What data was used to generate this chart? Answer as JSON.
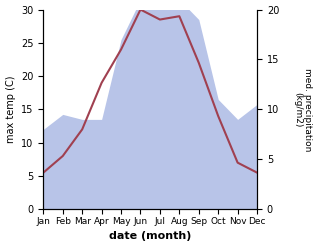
{
  "months": [
    1,
    2,
    3,
    4,
    5,
    6,
    7,
    8,
    9,
    10,
    11,
    12
  ],
  "month_labels": [
    "Jan",
    "Feb",
    "Mar",
    "Apr",
    "May",
    "Jun",
    "Jul",
    "Aug",
    "Sep",
    "Oct",
    "Nov",
    "Dec"
  ],
  "temperature": [
    5.5,
    8.0,
    12.0,
    19.0,
    24.0,
    30.0,
    28.5,
    29.0,
    22.0,
    14.0,
    7.0,
    5.5
  ],
  "precipitation": [
    8.0,
    9.5,
    9.0,
    9.0,
    17.0,
    21.0,
    20.0,
    21.0,
    19.0,
    11.0,
    9.0,
    10.5
  ],
  "temp_color": "#a04050",
  "precip_fill_color": "#b8c4e8",
  "ylabel_left": "max temp (C)",
  "ylabel_right": "med. precipitation\n(kg/m2)",
  "xlabel": "date (month)",
  "ylim_left": [
    0,
    30
  ],
  "ylim_right": [
    0,
    20
  ],
  "yticks_left": [
    0,
    5,
    10,
    15,
    20,
    25,
    30
  ],
  "yticks_right": [
    0,
    5,
    10,
    15,
    20
  ],
  "scale_factor": 1.5,
  "background_color": "#ffffff"
}
